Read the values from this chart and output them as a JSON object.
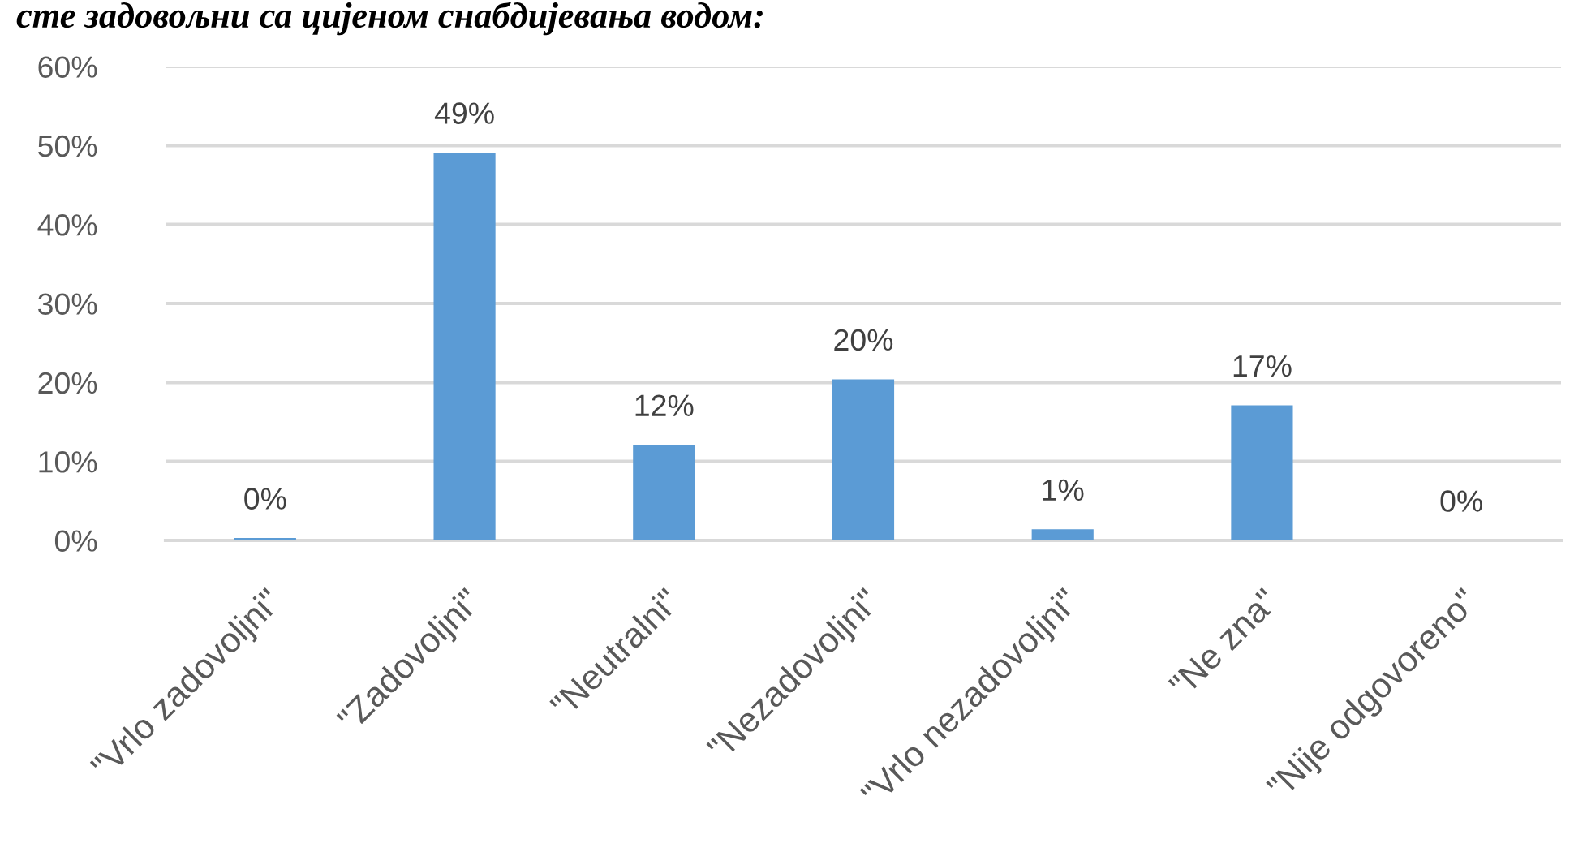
{
  "chart_data": {
    "type": "bar",
    "title": "сте задовољни са цијеном снабдијевања водом:",
    "categories": [
      "\"Vrlo zadovoljni\"",
      "\"Zadovoljni\"",
      "\"Neutralni\"",
      "\"Nezadovoljni\"",
      "\"Vrlo nezadovoljni\"",
      "\"Ne zna\"",
      "\"Nije odgovoreno\""
    ],
    "values": [
      0.3,
      49.1,
      12.1,
      20.4,
      1.4,
      17.1,
      0
    ],
    "value_labels": [
      "0%",
      "49%",
      "12%",
      "20%",
      "1%",
      "17%",
      "0%"
    ],
    "color": "#5b9bd5",
    "ylim": [
      0,
      60
    ],
    "yticks": [
      {
        "value": 0,
        "label": "0%"
      },
      {
        "value": 10,
        "label": "10%"
      },
      {
        "value": 20,
        "label": "20%"
      },
      {
        "value": 30,
        "label": "30%"
      },
      {
        "value": 40,
        "label": "40%"
      },
      {
        "value": 50,
        "label": "50%"
      },
      {
        "value": 60,
        "label": "60%"
      }
    ],
    "grid": "y"
  }
}
